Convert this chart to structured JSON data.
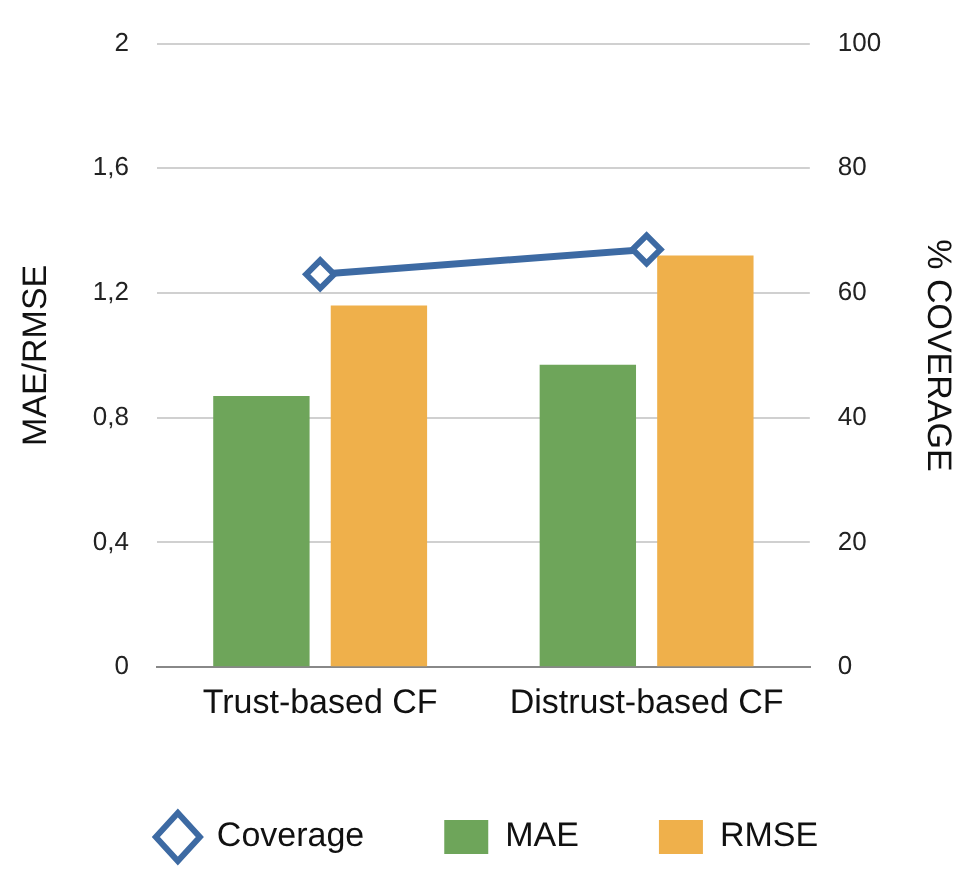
{
  "chart_data": {
    "type": "bar",
    "categories": [
      "Trust-based CF",
      "Distrust-based CF"
    ],
    "ylabel": "MAE/RMSE",
    "y2label": "% COVERAGE",
    "series": [
      {
        "name": "Coverage",
        "type": "line",
        "axis": "y2",
        "color": "#3d6aa3",
        "values": [
          63,
          67
        ],
        "marker": "diamond"
      },
      {
        "name": "MAE",
        "color": "#6ea55a",
        "values": [
          0.87,
          0.97
        ]
      },
      {
        "name": "RMSE",
        "color": "#efb04b",
        "values": [
          1.16,
          1.32
        ]
      }
    ],
    "ylim": [
      0,
      2
    ],
    "yticks": [
      0,
      {
        "value": 0.4,
        "label": "0,4"
      },
      {
        "value": 0.8,
        "label": "0,8"
      },
      {
        "value": 1.2,
        "label": "1,2"
      },
      {
        "value": 1.6,
        "label": "1,6"
      },
      2
    ],
    "y2lim": [
      0,
      100
    ],
    "y2ticks": [
      0,
      20,
      40,
      60,
      80,
      100
    ],
    "grid": "y",
    "legend": "bottom"
  }
}
